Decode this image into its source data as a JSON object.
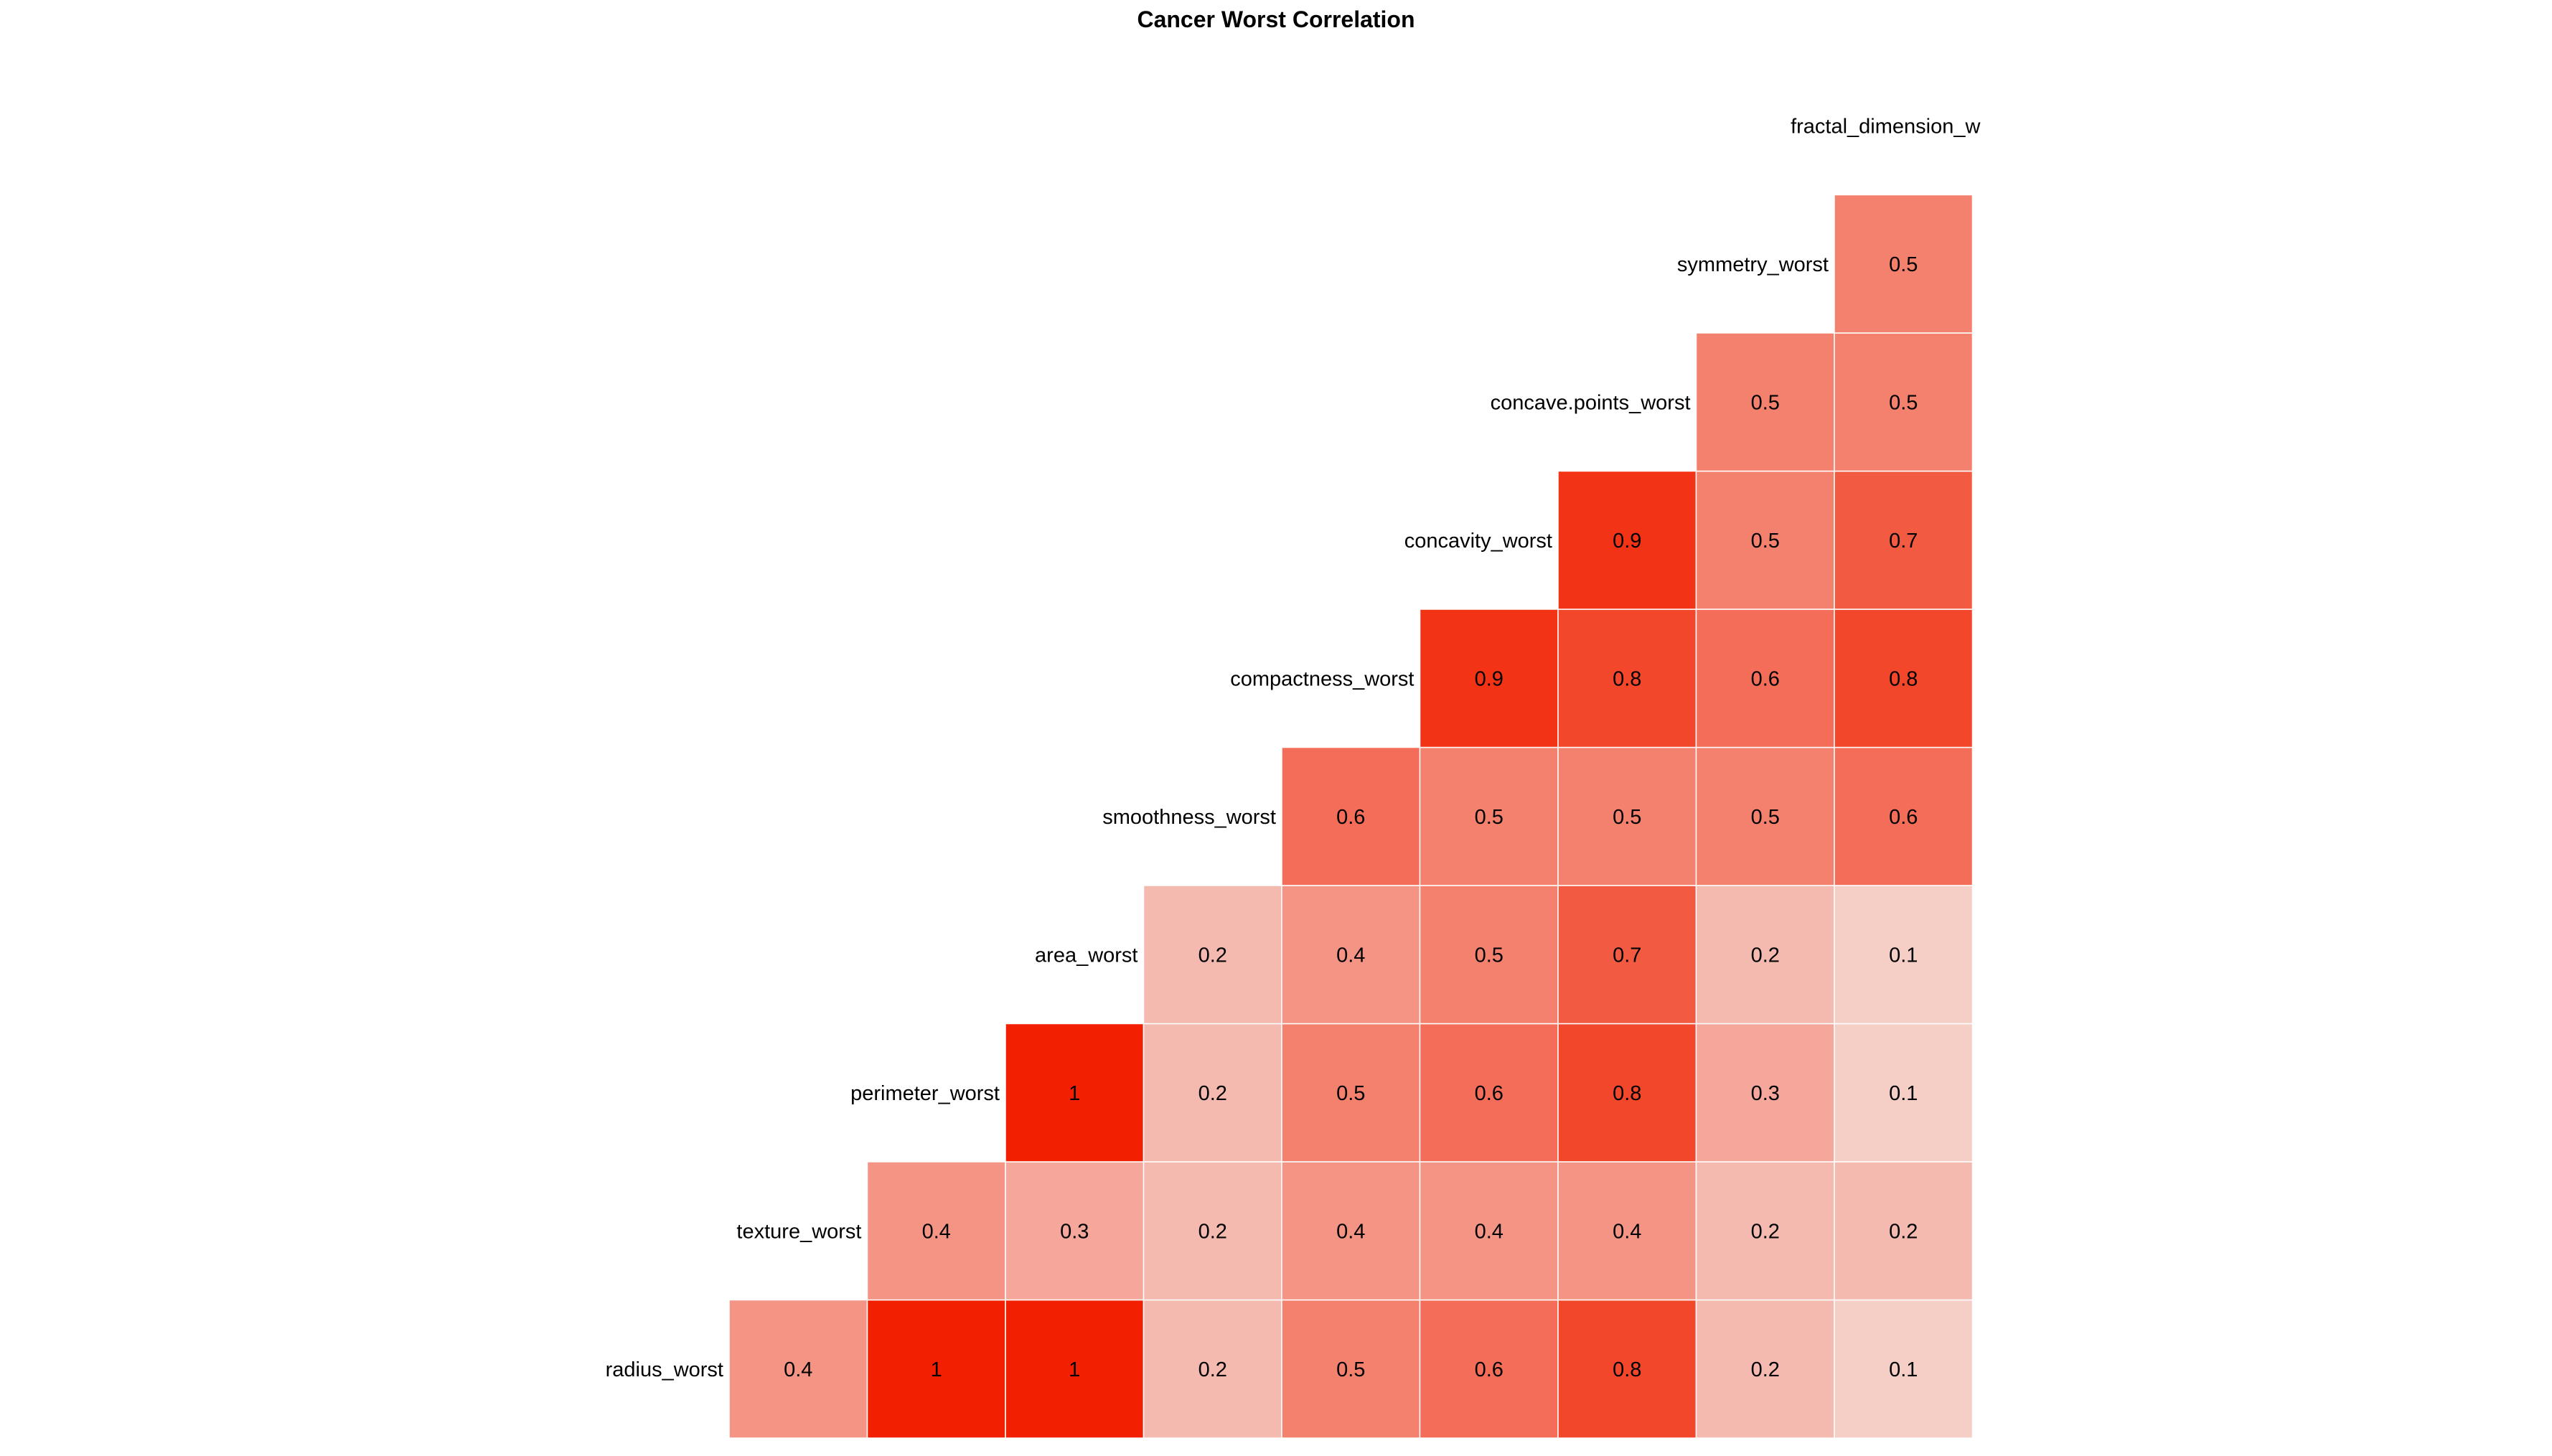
{
  "chart_data": {
    "type": "heatmap",
    "title": "Cancer Worst Correlation",
    "variables": [
      "radius_worst",
      "texture_worst",
      "perimeter_worst",
      "area_worst",
      "smoothness_worst",
      "compactness_worst",
      "concavity_worst",
      "concave.points_worst",
      "symmetry_worst",
      "fractal_dimension_w"
    ],
    "columns": [
      "texture_worst",
      "perimeter_worst",
      "area_worst",
      "smoothness_worst",
      "compactness_worst",
      "concavity_worst",
      "concave.points_worst",
      "symmetry_worst",
      "fractal_dimension_w"
    ],
    "rows": [
      {
        "name": "radius_worst",
        "values": [
          0.4,
          1,
          1,
          0.2,
          0.5,
          0.6,
          0.8,
          0.2,
          0.1
        ]
      },
      {
        "name": "texture_worst",
        "values": [
          null,
          0.4,
          0.3,
          0.2,
          0.4,
          0.4,
          0.4,
          0.2,
          0.2
        ]
      },
      {
        "name": "perimeter_worst",
        "values": [
          null,
          null,
          1,
          0.2,
          0.5,
          0.6,
          0.8,
          0.3,
          0.1
        ]
      },
      {
        "name": "area_worst",
        "values": [
          null,
          null,
          null,
          0.2,
          0.4,
          0.5,
          0.7,
          0.2,
          0.1
        ]
      },
      {
        "name": "smoothness_worst",
        "values": [
          null,
          null,
          null,
          null,
          0.6,
          0.5,
          0.5,
          0.5,
          0.6
        ]
      },
      {
        "name": "compactness_worst",
        "values": [
          null,
          null,
          null,
          null,
          null,
          0.9,
          0.8,
          0.6,
          0.8
        ]
      },
      {
        "name": "concavity_worst",
        "values": [
          null,
          null,
          null,
          null,
          null,
          null,
          0.9,
          0.5,
          0.7
        ]
      },
      {
        "name": "concave.points_worst",
        "values": [
          null,
          null,
          null,
          null,
          null,
          null,
          null,
          0.5,
          0.5
        ]
      },
      {
        "name": "symmetry_worst",
        "values": [
          null,
          null,
          null,
          null,
          null,
          null,
          null,
          null,
          0.5
        ]
      }
    ],
    "value_range": [
      0,
      1
    ],
    "color_low": "#f5e1dc",
    "color_high": "#f22000",
    "legend": "none",
    "grid": false
  }
}
